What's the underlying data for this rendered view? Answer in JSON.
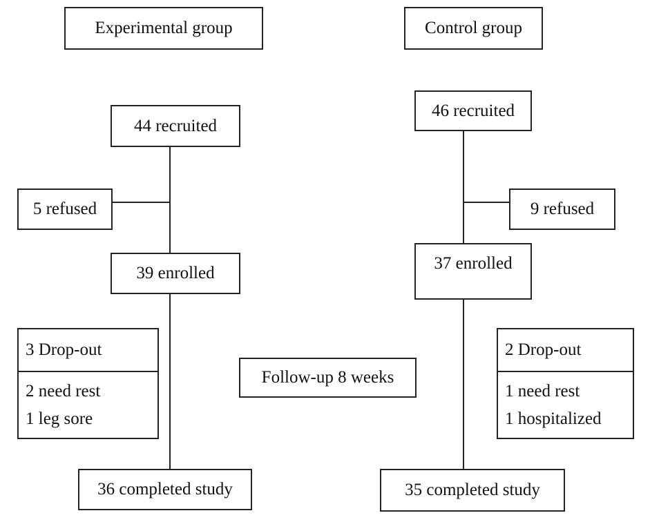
{
  "groups": [
    {
      "title": "Experimental group",
      "recruited": "44 recruited",
      "refused": "5 refused",
      "enrolled": "39 enrolled",
      "dropout": {
        "title": "3 Drop-out",
        "reasons": [
          "2 need rest",
          "1 leg sore"
        ]
      },
      "completed": "36 completed study"
    },
    {
      "title": "Control group",
      "recruited": "46 recruited",
      "refused": "9 refused",
      "enrolled": "37 enrolled",
      "dropout": {
        "title": "2 Drop-out",
        "reasons": [
          "1 need rest",
          "1 hospitalized"
        ]
      },
      "completed": "35 completed study"
    }
  ],
  "follow_up": "Follow-up 8 weeks"
}
